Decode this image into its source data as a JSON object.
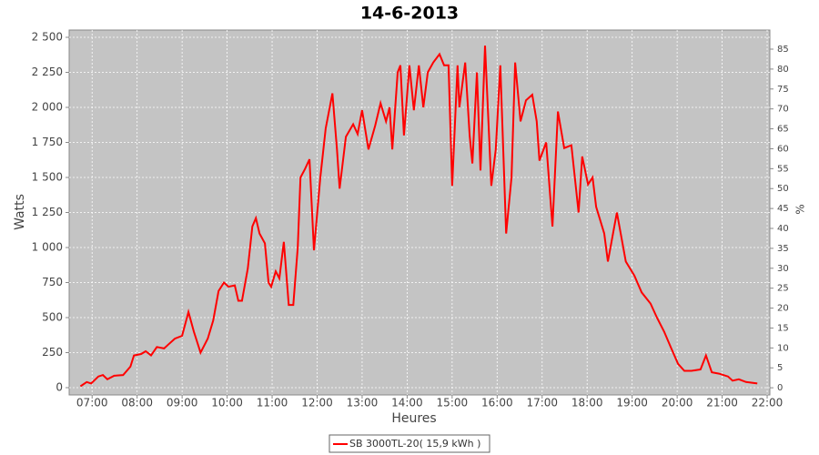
{
  "chart_data": {
    "type": "line",
    "title": "14-6-2013",
    "x_label": "Heures",
    "y_label": "Watts",
    "y2_label": "%",
    "x": [
      6.74,
      6.88,
      6.98,
      7.14,
      7.24,
      7.34,
      7.49,
      7.69,
      7.85,
      7.93,
      8.09,
      8.19,
      8.31,
      8.44,
      8.6,
      8.7,
      8.84,
      9.0,
      9.14,
      9.26,
      9.41,
      9.57,
      9.69,
      9.81,
      9.93,
      10.03,
      10.17,
      10.25,
      10.33,
      10.46,
      10.56,
      10.64,
      10.72,
      10.84,
      10.92,
      10.98,
      11.08,
      11.16,
      11.26,
      11.37,
      11.47,
      11.57,
      11.63,
      11.73,
      11.83,
      11.93,
      12.07,
      12.19,
      12.34,
      12.44,
      12.5,
      12.64,
      12.8,
      12.9,
      13.0,
      13.14,
      13.29,
      13.41,
      13.53,
      13.61,
      13.67,
      13.79,
      13.85,
      13.93,
      14.05,
      14.15,
      14.26,
      14.36,
      14.46,
      14.58,
      14.72,
      14.82,
      14.92,
      15.0,
      15.12,
      15.16,
      15.29,
      15.39,
      15.45,
      15.55,
      15.63,
      15.73,
      15.87,
      15.97,
      16.07,
      16.2,
      16.32,
      16.4,
      16.52,
      16.64,
      16.78,
      16.88,
      16.94,
      17.09,
      17.23,
      17.35,
      17.49,
      17.65,
      17.81,
      17.89,
      18.02,
      18.12,
      18.2,
      18.38,
      18.46,
      18.66,
      18.86,
      19.05,
      19.21,
      19.41,
      19.55,
      19.71,
      19.87,
      20.02,
      20.16,
      20.32,
      20.52,
      20.64,
      20.77,
      20.93,
      21.13,
      21.23,
      21.37,
      21.53,
      21.78
    ],
    "series": [
      {
        "name": "SB 3000TL-20( 15,9 kWh )",
        "color": "#ff0000",
        "values": [
          10,
          40,
          30,
          80,
          90,
          60,
          85,
          90,
          150,
          230,
          240,
          260,
          230,
          290,
          280,
          310,
          350,
          370,
          540,
          400,
          250,
          350,
          480,
          690,
          750,
          720,
          730,
          620,
          620,
          850,
          1150,
          1210,
          1100,
          1030,
          750,
          720,
          830,
          780,
          1040,
          590,
          590,
          1000,
          1500,
          1560,
          1630,
          980,
          1500,
          1850,
          2100,
          1700,
          1420,
          1790,
          1880,
          1810,
          1980,
          1700,
          1870,
          2030,
          1900,
          2000,
          1700,
          2250,
          2300,
          1800,
          2300,
          1980,
          2300,
          2000,
          2250,
          2320,
          2380,
          2300,
          2300,
          1440,
          2300,
          2000,
          2320,
          1800,
          1600,
          2250,
          1550,
          2440,
          1440,
          1700,
          2300,
          1100,
          1500,
          2320,
          1900,
          2050,
          2090,
          1900,
          1620,
          1750,
          1150,
          1970,
          1710,
          1730,
          1250,
          1650,
          1450,
          1500,
          1290,
          1100,
          900,
          1250,
          900,
          800,
          680,
          600,
          500,
          400,
          280,
          170,
          120,
          120,
          130,
          230,
          110,
          100,
          80,
          50,
          60,
          40,
          30
        ]
      }
    ],
    "xlim": [
      6.49,
      22.06
    ],
    "ylim": [
      -52,
      2552
    ],
    "y2lim": [
      -1.8,
      89.8
    ],
    "xticks": [
      {
        "value": 7,
        "label": "07:00"
      },
      {
        "value": 8,
        "label": "08:00"
      },
      {
        "value": 9,
        "label": "09:00"
      },
      {
        "value": 10,
        "label": "10:00"
      },
      {
        "value": 11,
        "label": "11:00"
      },
      {
        "value": 12,
        "label": "12:00"
      },
      {
        "value": 13,
        "label": "13:00"
      },
      {
        "value": 14,
        "label": "14:00"
      },
      {
        "value": 15,
        "label": "15:00"
      },
      {
        "value": 16,
        "label": "16:00"
      },
      {
        "value": 17,
        "label": "17:00"
      },
      {
        "value": 18,
        "label": "18:00"
      },
      {
        "value": 19,
        "label": "19:00"
      },
      {
        "value": 20,
        "label": "20:00"
      },
      {
        "value": 21,
        "label": "21:00"
      },
      {
        "value": 22,
        "label": "22:00"
      }
    ],
    "yticks": [
      0,
      250,
      500,
      750,
      {
        "value": 1000,
        "label": "1 000"
      },
      {
        "value": 1250,
        "label": "1 250"
      },
      {
        "value": 1500,
        "label": "1 500"
      },
      {
        "value": 1750,
        "label": "1 750"
      },
      {
        "value": 2000,
        "label": "2 000"
      },
      {
        "value": 2250,
        "label": "2 250"
      },
      {
        "value": 2500,
        "label": "2 500"
      }
    ],
    "y2ticks": [
      0,
      5,
      10,
      15,
      20,
      25,
      30,
      35,
      40,
      45,
      50,
      55,
      60,
      65,
      70,
      75,
      80,
      85
    ],
    "grid": true,
    "plot_background": "#c4c4c4",
    "legend": "bottom"
  }
}
